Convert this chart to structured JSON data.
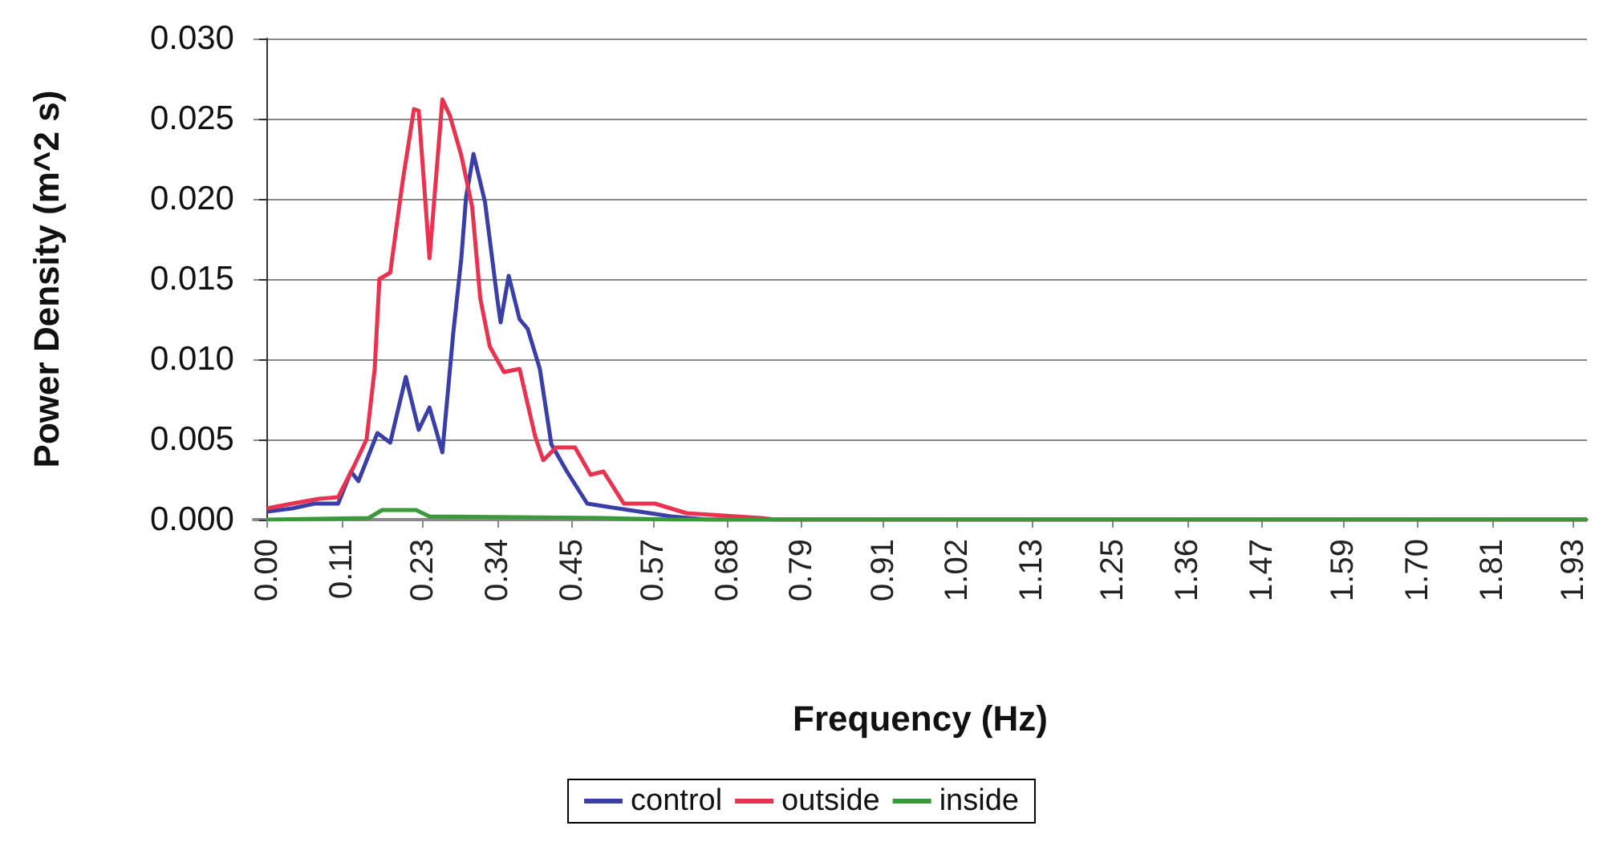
{
  "chart_data": {
    "type": "line",
    "xlabel": "Frequency (Hz)",
    "ylabel": "Power Density (m^2 s)",
    "xlim": [
      -0.02,
      1.95
    ],
    "xticks": [
      {
        "value": 0,
        "label": "0.00"
      },
      0.11,
      0.23,
      0.34,
      0.45,
      0.57,
      0.68,
      0.79,
      0.91,
      1.02,
      1.13,
      1.25,
      1.36,
      1.47,
      1.59,
      {
        "value": 1.7,
        "label": "1.70"
      },
      1.81,
      1.93
    ],
    "ylim": [
      0,
      0.03
    ],
    "yticks": [
      {
        "value": 0,
        "label": "0.000"
      },
      0.005,
      {
        "value": 0.01,
        "label": "0.010"
      },
      0.015,
      {
        "value": 0.02,
        "label": "0.020"
      },
      0.025,
      {
        "value": 0.03,
        "label": "0.030"
      }
    ],
    "grid": "y",
    "legend": "bottom",
    "marker": "none",
    "line_style": "solid",
    "series": [
      {
        "name": "control",
        "color": "#3a3fa8",
        "x": [
          0,
          0.037,
          0.07,
          0.105,
          0.124,
          0.135,
          0.163,
          0.182,
          0.205,
          0.224,
          0.24,
          0.259,
          0.275,
          0.287,
          0.294,
          0.305,
          0.322,
          0.34,
          0.345,
          0.357,
          0.373,
          0.385,
          0.403,
          0.42,
          0.443,
          0.473,
          0.503,
          0.566,
          0.597,
          0.65,
          1.95
        ],
        "values": [
          0.0005,
          0.0007,
          0.001,
          0.001,
          0.003,
          0.0024,
          0.0054,
          0.0048,
          0.0089,
          0.0056,
          0.007,
          0.0042,
          0.0116,
          0.0163,
          0.0201,
          0.0228,
          0.0198,
          0.0138,
          0.0123,
          0.0152,
          0.0125,
          0.0119,
          0.0094,
          0.0047,
          0.003,
          0.001,
          0.0008,
          0.0004,
          0.0002,
          0,
          0
        ]
      },
      {
        "name": "outside",
        "color": "#e8324f",
        "x": [
          0,
          0.037,
          0.077,
          0.105,
          0.128,
          0.147,
          0.159,
          0.166,
          0.182,
          0.2,
          0.217,
          0.224,
          0.24,
          0.259,
          0.27,
          0.287,
          0.303,
          0.315,
          0.329,
          0.35,
          0.373,
          0.396,
          0.408,
          0.427,
          0.455,
          0.478,
          0.497,
          0.527,
          0.573,
          0.62,
          0.73,
          0.75,
          1.95
        ],
        "values": [
          0.0007,
          0.001,
          0.0013,
          0.0014,
          0.0033,
          0.005,
          0.0094,
          0.015,
          0.0154,
          0.021,
          0.0256,
          0.0255,
          0.0163,
          0.0262,
          0.0252,
          0.0227,
          0.0195,
          0.0138,
          0.0108,
          0.0092,
          0.0094,
          0.0052,
          0.0037,
          0.0045,
          0.0045,
          0.0028,
          0.003,
          0.001,
          0.001,
          0.0004,
          0.0001,
          0,
          0
        ]
      },
      {
        "name": "inside",
        "color": "#3a9a3a",
        "x": [
          0,
          0.15,
          0.17,
          0.22,
          0.24,
          0.5,
          0.6,
          1.95
        ],
        "values": [
          0,
          0.0001,
          0.0006,
          0.0006,
          0.0002,
          0.0001,
          0,
          0
        ]
      }
    ]
  }
}
